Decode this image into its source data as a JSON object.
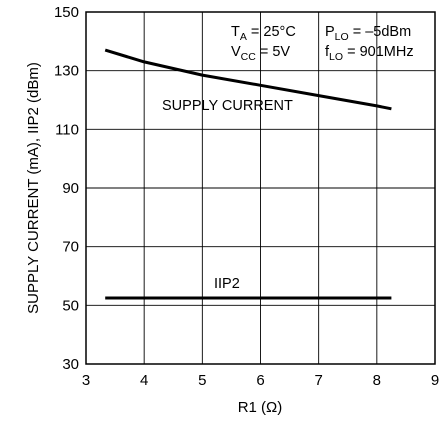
{
  "chart_data": {
    "type": "line",
    "xlabel": "R1 (Ω)",
    "ylabel": "SUPPLY CURRENT (mA), IIP2 (dBm)",
    "xlim": [
      3,
      9
    ],
    "ylim": [
      30,
      150
    ],
    "x_ticks": [
      3,
      4,
      5,
      6,
      7,
      8,
      9
    ],
    "y_ticks": [
      30,
      50,
      70,
      90,
      110,
      130,
      150
    ],
    "grid": true,
    "series": [
      {
        "name": "SUPPLY CURRENT",
        "color": "#000000",
        "points": [
          [
            3.33,
            137.0
          ],
          [
            4.0,
            133.0
          ],
          [
            5.0,
            128.5
          ],
          [
            6.0,
            125.0
          ],
          [
            7.0,
            121.5
          ],
          [
            8.0,
            118.0
          ],
          [
            8.25,
            117.0
          ]
        ]
      },
      {
        "name": "IIP2",
        "color": "#000000",
        "points": [
          [
            3.33,
            52.5
          ],
          [
            8.25,
            52.5
          ]
        ]
      }
    ],
    "conditions": {
      "ta": {
        "main": "T",
        "sub": "A",
        "rest": " = 25°C"
      },
      "vcc": {
        "main": "V",
        "sub": "CC",
        "rest": " = 5V"
      },
      "plo": {
        "main": "P",
        "sub": "LO",
        "rest": " = –5dBm"
      },
      "flo": {
        "main": "f",
        "sub": "LO",
        "rest": " = 901MHz"
      }
    }
  }
}
